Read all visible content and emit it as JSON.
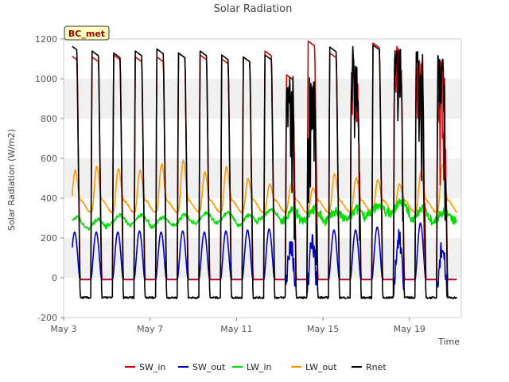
{
  "chart_data": {
    "type": "line",
    "title": "Solar Radiation",
    "xlabel": "Time",
    "ylabel": "Solar Radiation (W/m2)",
    "ylim": [
      -200,
      1200
    ],
    "yticks": [
      -200,
      0,
      200,
      400,
      600,
      800,
      1000,
      1200
    ],
    "xlim_days": [
      3,
      21.4
    ],
    "xticks": [
      {
        "day": 3,
        "label": "May 3"
      },
      {
        "day": 7,
        "label": "May 7"
      },
      {
        "day": 11,
        "label": "May 11"
      },
      {
        "day": 15,
        "label": "May 15"
      },
      {
        "day": 19,
        "label": "May 19"
      }
    ],
    "grid": "horizontal bands",
    "legend_position": "bottom",
    "station_label": "BC_met",
    "series": [
      {
        "name": "SW_in",
        "color": "#dd0000",
        "night": -10,
        "peak": 1120,
        "shape": "flat-top",
        "noisy_days": [
          16,
          18,
          19,
          20
        ]
      },
      {
        "name": "SW_out",
        "color": "#0000cc",
        "night": -8,
        "peak": 230,
        "shape": "peak",
        "noisy_days": [
          13,
          14,
          18,
          20
        ]
      },
      {
        "name": "LW_in",
        "color": "#00dd00",
        "base": 270,
        "amplitude": 40,
        "shape": "wave"
      },
      {
        "name": "LW_out",
        "color": "#ff9900",
        "base": 350,
        "amplitude": 200,
        "shape": "wave"
      },
      {
        "name": "Rnet",
        "color": "#000000",
        "night": -100,
        "peak": 1140,
        "shape": "flat-top",
        "noisy_days": [
          13,
          14,
          16,
          18,
          19,
          20
        ]
      }
    ],
    "daily_peaks_SW_in": [
      1120,
      1110,
      1120,
      1110,
      1110,
      1130,
      1120,
      1100,
      1110,
      1140,
      1020,
      1190,
      1130,
      1120,
      1180,
      1180,
      1150,
      1120
    ],
    "daily_peaks_Rnet": [
      1170,
      1140,
      1130,
      1140,
      1150,
      1130,
      1140,
      1120,
      1110,
      1120,
      1040,
      1010,
      1160,
      1170,
      1170,
      1180,
      1150,
      1120
    ],
    "daily_peaks_SW_out": [
      230,
      230,
      230,
      235,
      230,
      235,
      230,
      235,
      240,
      245,
      240,
      235,
      240,
      240,
      255,
      260,
      275,
      210
    ],
    "daily_peaks_LW_out": [
      540,
      560,
      550,
      540,
      570,
      590,
      530,
      560,
      500,
      470,
      470,
      450,
      520,
      500,
      490,
      470,
      530,
      570
    ],
    "daily_mean_LW_in": [
      280,
      270,
      290,
      290,
      280,
      290,
      300,
      300,
      290,
      320,
      310,
      320,
      310,
      320,
      340,
      350,
      320,
      310
    ]
  }
}
